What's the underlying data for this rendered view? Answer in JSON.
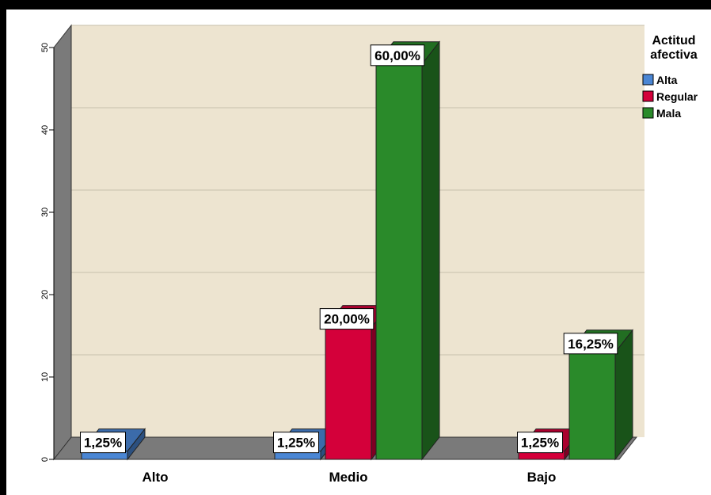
{
  "chart_data": {
    "type": "bar",
    "categories": [
      "Alto",
      "Medio",
      "Bajo"
    ],
    "series": [
      {
        "name": "Alta",
        "color": "#4a86d4",
        "values": [
          1,
          1,
          0
        ],
        "labels": [
          "1,25%",
          "1,25%",
          ""
        ]
      },
      {
        "name": "Regular",
        "color": "#d4003a",
        "values": [
          0,
          16,
          1
        ],
        "labels": [
          "",
          "20,00%",
          "1,25%"
        ]
      },
      {
        "name": "Mala",
        "color": "#2a8a2a",
        "values": [
          0,
          48,
          13
        ],
        "labels": [
          "",
          "60,00%",
          "16,25%"
        ]
      }
    ],
    "legend_title": "Actitud afectiva",
    "legend_position": "top-right",
    "yticks": [
      "0",
      "10",
      "20",
      "30",
      "40",
      "50"
    ],
    "ylim": [
      0,
      50
    ],
    "grid": true,
    "plot_background": "#ede4d0",
    "wall_color": "#7a7a7a",
    "three_d": true
  }
}
